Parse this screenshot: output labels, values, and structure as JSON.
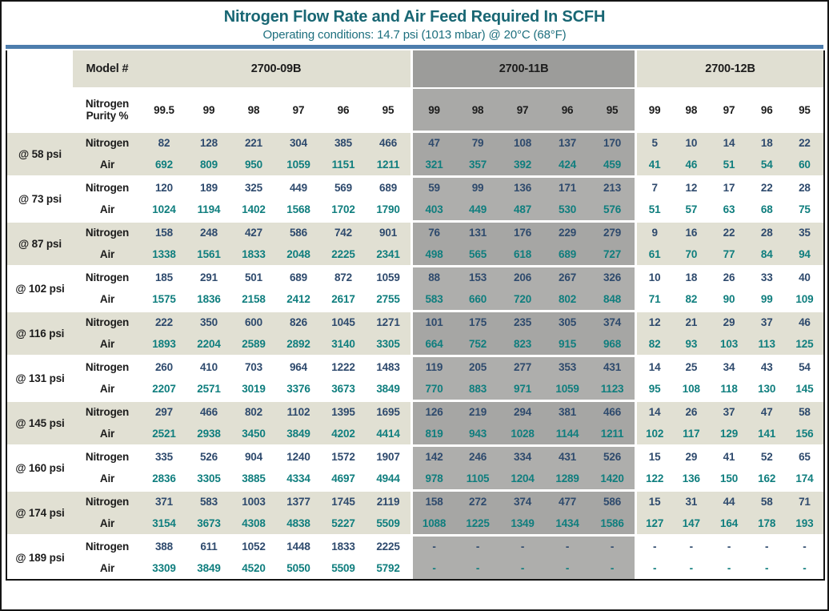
{
  "title": "Nitrogen Flow Rate and Air Feed Required In SCFH",
  "subtitle": "Operating conditions: 14.7 psi (1013 mbar) @ 20°C (68°F)",
  "units": "SCFH",
  "header": {
    "model_label": "Model #",
    "purity_label": "Nitrogen Purity %",
    "models": [
      {
        "name": "2700-09B",
        "purities": [
          "99.5",
          "99",
          "98",
          "97",
          "96",
          "95"
        ]
      },
      {
        "name": "2700-11B",
        "purities": [
          "99",
          "98",
          "97",
          "96",
          "95"
        ]
      },
      {
        "name": "2700-12B",
        "purities": [
          "99",
          "98",
          "97",
          "96",
          "95"
        ]
      }
    ]
  },
  "row_labels": {
    "nitrogen": "Nitrogen",
    "air": "Air"
  },
  "colors": {
    "accent_teal": "#186673",
    "subtitle_teal": "#1d6f7e",
    "divider_blue": "#4d7dad",
    "value_navy": "#2e4a6d",
    "value_teal": "#0f7e7e",
    "stripe_beige": "#e1e0d3",
    "header_beige": "#e0dfd2",
    "section_gray_header": "#9c9c9a",
    "section_gray_purity": "#a9a9a7",
    "section_gray_dark": "#a6a6a4",
    "section_gray_light": "#aeaeac"
  },
  "rows": [
    {
      "pressure": "@ 58 psi",
      "m09b": {
        "nitrogen": [
          "82",
          "128",
          "221",
          "304",
          "385",
          "466"
        ],
        "air": [
          "692",
          "809",
          "950",
          "1059",
          "1151",
          "1211"
        ]
      },
      "m11b": {
        "nitrogen": [
          "47",
          "79",
          "108",
          "137",
          "170"
        ],
        "air": [
          "321",
          "357",
          "392",
          "424",
          "459"
        ]
      },
      "m12b": {
        "nitrogen": [
          "5",
          "10",
          "14",
          "18",
          "22"
        ],
        "air": [
          "41",
          "46",
          "51",
          "54",
          "60"
        ]
      }
    },
    {
      "pressure": "@ 73 psi",
      "m09b": {
        "nitrogen": [
          "120",
          "189",
          "325",
          "449",
          "569",
          "689"
        ],
        "air": [
          "1024",
          "1194",
          "1402",
          "1568",
          "1702",
          "1790"
        ]
      },
      "m11b": {
        "nitrogen": [
          "59",
          "99",
          "136",
          "171",
          "213"
        ],
        "air": [
          "403",
          "449",
          "487",
          "530",
          "576"
        ]
      },
      "m12b": {
        "nitrogen": [
          "7",
          "12",
          "17",
          "22",
          "28"
        ],
        "air": [
          "51",
          "57",
          "63",
          "68",
          "75"
        ]
      }
    },
    {
      "pressure": "@ 87 psi",
      "m09b": {
        "nitrogen": [
          "158",
          "248",
          "427",
          "586",
          "742",
          "901"
        ],
        "air": [
          "1338",
          "1561",
          "1833",
          "2048",
          "2225",
          "2341"
        ]
      },
      "m11b": {
        "nitrogen": [
          "76",
          "131",
          "176",
          "229",
          "279"
        ],
        "air": [
          "498",
          "565",
          "618",
          "689",
          "727"
        ]
      },
      "m12b": {
        "nitrogen": [
          "9",
          "16",
          "22",
          "28",
          "35"
        ],
        "air": [
          "61",
          "70",
          "77",
          "84",
          "94"
        ]
      }
    },
    {
      "pressure": "@ 102 psi",
      "m09b": {
        "nitrogen": [
          "185",
          "291",
          "501",
          "689",
          "872",
          "1059"
        ],
        "air": [
          "1575",
          "1836",
          "2158",
          "2412",
          "2617",
          "2755"
        ]
      },
      "m11b": {
        "nitrogen": [
          "88",
          "153",
          "206",
          "267",
          "326"
        ],
        "air": [
          "583",
          "660",
          "720",
          "802",
          "848"
        ]
      },
      "m12b": {
        "nitrogen": [
          "10",
          "18",
          "26",
          "33",
          "40"
        ],
        "air": [
          "71",
          "82",
          "90",
          "99",
          "109"
        ]
      }
    },
    {
      "pressure": "@ 116 psi",
      "m09b": {
        "nitrogen": [
          "222",
          "350",
          "600",
          "826",
          "1045",
          "1271"
        ],
        "air": [
          "1893",
          "2204",
          "2589",
          "2892",
          "3140",
          "3305"
        ]
      },
      "m11b": {
        "nitrogen": [
          "101",
          "175",
          "235",
          "305",
          "374"
        ],
        "air": [
          "664",
          "752",
          "823",
          "915",
          "968"
        ]
      },
      "m12b": {
        "nitrogen": [
          "12",
          "21",
          "29",
          "37",
          "46"
        ],
        "air": [
          "82",
          "93",
          "103",
          "113",
          "125"
        ]
      }
    },
    {
      "pressure": "@ 131 psi",
      "m09b": {
        "nitrogen": [
          "260",
          "410",
          "703",
          "964",
          "1222",
          "1483"
        ],
        "air": [
          "2207",
          "2571",
          "3019",
          "3376",
          "3673",
          "3849"
        ]
      },
      "m11b": {
        "nitrogen": [
          "119",
          "205",
          "277",
          "353",
          "431"
        ],
        "air": [
          "770",
          "883",
          "971",
          "1059",
          "1123"
        ]
      },
      "m12b": {
        "nitrogen": [
          "14",
          "25",
          "34",
          "43",
          "54"
        ],
        "air": [
          "95",
          "108",
          "118",
          "130",
          "145"
        ]
      }
    },
    {
      "pressure": "@ 145 psi",
      "m09b": {
        "nitrogen": [
          "297",
          "466",
          "802",
          "1102",
          "1395",
          "1695"
        ],
        "air": [
          "2521",
          "2938",
          "3450",
          "3849",
          "4202",
          "4414"
        ]
      },
      "m11b": {
        "nitrogen": [
          "126",
          "219",
          "294",
          "381",
          "466"
        ],
        "air": [
          "819",
          "943",
          "1028",
          "1144",
          "1211"
        ]
      },
      "m12b": {
        "nitrogen": [
          "14",
          "26",
          "37",
          "47",
          "58"
        ],
        "air": [
          "102",
          "117",
          "129",
          "141",
          "156"
        ]
      }
    },
    {
      "pressure": "@ 160 psi",
      "m09b": {
        "nitrogen": [
          "335",
          "526",
          "904",
          "1240",
          "1572",
          "1907"
        ],
        "air": [
          "2836",
          "3305",
          "3885",
          "4334",
          "4697",
          "4944"
        ]
      },
      "m11b": {
        "nitrogen": [
          "142",
          "246",
          "334",
          "431",
          "526"
        ],
        "air": [
          "978",
          "1105",
          "1204",
          "1289",
          "1420"
        ]
      },
      "m12b": {
        "nitrogen": [
          "15",
          "29",
          "41",
          "52",
          "65"
        ],
        "air": [
          "122",
          "136",
          "150",
          "162",
          "174"
        ]
      }
    },
    {
      "pressure": "@ 174 psi",
      "m09b": {
        "nitrogen": [
          "371",
          "583",
          "1003",
          "1377",
          "1745",
          "2119"
        ],
        "air": [
          "3154",
          "3673",
          "4308",
          "4838",
          "5227",
          "5509"
        ]
      },
      "m11b": {
        "nitrogen": [
          "158",
          "272",
          "374",
          "477",
          "586"
        ],
        "air": [
          "1088",
          "1225",
          "1349",
          "1434",
          "1586"
        ]
      },
      "m12b": {
        "nitrogen": [
          "15",
          "31",
          "44",
          "58",
          "71"
        ],
        "air": [
          "127",
          "147",
          "164",
          "178",
          "193"
        ]
      }
    },
    {
      "pressure": "@ 189 psi",
      "m09b": {
        "nitrogen": [
          "388",
          "611",
          "1052",
          "1448",
          "1833",
          "2225"
        ],
        "air": [
          "3309",
          "3849",
          "4520",
          "5050",
          "5509",
          "5792"
        ]
      },
      "m11b": {
        "nitrogen": [
          "-",
          "-",
          "-",
          "-",
          "-"
        ],
        "air": [
          "-",
          "-",
          "-",
          "-",
          "-"
        ]
      },
      "m12b": {
        "nitrogen": [
          "-",
          "-",
          "-",
          "-",
          "-"
        ],
        "air": [
          "-",
          "-",
          "-",
          "-",
          "-"
        ]
      }
    }
  ]
}
